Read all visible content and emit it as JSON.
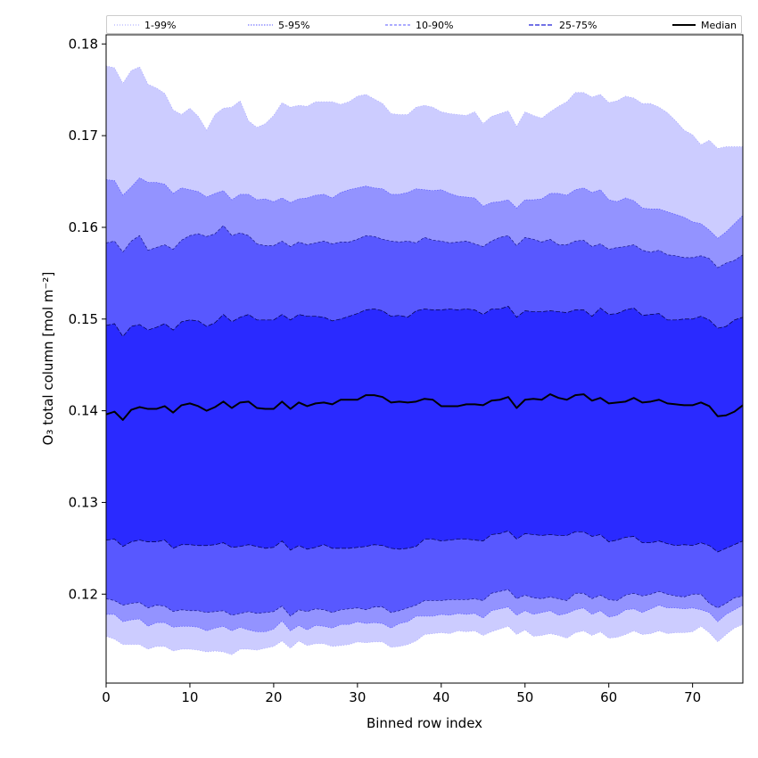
{
  "chart_data": {
    "type": "area",
    "title": "",
    "xlabel": "Binned row index",
    "ylabel": "O₃ total column [mol m⁻²]",
    "xlim": [
      0,
      76
    ],
    "ylim": [
      0.1103,
      0.181
    ],
    "xticks": [
      0,
      10,
      20,
      30,
      40,
      50,
      60,
      70
    ],
    "yticks": [
      0.12,
      0.13,
      0.14,
      0.15,
      0.16,
      0.17,
      0.18
    ],
    "xtick_labels": [
      "0",
      "10",
      "20",
      "30",
      "40",
      "50",
      "60",
      "70"
    ],
    "ytick_labels": [
      "0.12",
      "0.13",
      "0.14",
      "0.15",
      "0.16",
      "0.17",
      "0.18"
    ],
    "legend": [
      "1-99%",
      "5-95%",
      "10-90%",
      "25-75%",
      "Median"
    ],
    "legend_position": "top",
    "x": [
      0,
      1,
      2,
      3,
      4,
      5,
      6,
      7,
      8,
      9,
      10,
      11,
      12,
      13,
      14,
      15,
      16,
      17,
      18,
      19,
      20,
      21,
      22,
      23,
      24,
      25,
      26,
      27,
      28,
      29,
      30,
      31,
      32,
      33,
      34,
      35,
      36,
      37,
      38,
      39,
      40,
      41,
      42,
      43,
      44,
      45,
      46,
      47,
      48,
      49,
      50,
      51,
      52,
      53,
      54,
      55,
      56,
      57,
      58,
      59,
      60,
      61,
      62,
      63,
      64,
      65,
      66,
      67,
      68,
      69,
      70,
      71,
      72,
      73,
      74,
      75,
      76
    ],
    "bands": [
      {
        "name": "1-99%",
        "color": "#ccccff",
        "line_color": "#a0a0ff",
        "dash": "1,2",
        "upper": [
          0.1776,
          0.1774,
          0.1757,
          0.1771,
          0.1775,
          0.1756,
          0.1752,
          0.1746,
          0.1728,
          0.1723,
          0.173,
          0.1721,
          0.1706,
          0.1723,
          0.173,
          0.1731,
          0.1738,
          0.1716,
          0.1709,
          0.1713,
          0.1722,
          0.1736,
          0.1731,
          0.1733,
          0.1732,
          0.1737,
          0.1737,
          0.1737,
          0.1734,
          0.1737,
          0.1743,
          0.1745,
          0.174,
          0.1735,
          0.1724,
          0.1723,
          0.1723,
          0.1731,
          0.1733,
          0.1731,
          0.1726,
          0.1724,
          0.1723,
          0.1722,
          0.1726,
          0.1713,
          0.1721,
          0.1724,
          0.1727,
          0.171,
          0.1726,
          0.1722,
          0.1719,
          0.1726,
          0.1732,
          0.1737,
          0.1747,
          0.1747,
          0.1742,
          0.1745,
          0.1736,
          0.1738,
          0.1743,
          0.1741,
          0.1735,
          0.1735,
          0.1731,
          0.1725,
          0.1716,
          0.1706,
          0.1701,
          0.169,
          0.1695,
          0.1686,
          0.1688,
          0.1688,
          0.1688
        ],
        "lower": [
          0.1154,
          0.1151,
          0.1145,
          0.1145,
          0.1145,
          0.114,
          0.1143,
          0.1143,
          0.1138,
          0.114,
          0.114,
          0.1139,
          0.1137,
          0.1138,
          0.1137,
          0.1134,
          0.114,
          0.114,
          0.1139,
          0.1141,
          0.1143,
          0.1149,
          0.1141,
          0.1149,
          0.1144,
          0.1146,
          0.1146,
          0.1143,
          0.1144,
          0.1145,
          0.1148,
          0.1147,
          0.1148,
          0.1148,
          0.1142,
          0.1143,
          0.1145,
          0.1149,
          0.1156,
          0.1157,
          0.1158,
          0.1157,
          0.116,
          0.1159,
          0.116,
          0.1155,
          0.1159,
          0.1162,
          0.1165,
          0.1156,
          0.1161,
          0.1154,
          0.1155,
          0.1157,
          0.1155,
          0.1152,
          0.1158,
          0.116,
          0.1155,
          0.1159,
          0.1152,
          0.1153,
          0.1156,
          0.116,
          0.1156,
          0.1157,
          0.116,
          0.1157,
          0.1158,
          0.1158,
          0.1159,
          0.1165,
          0.1158,
          0.1148,
          0.1156,
          0.1163,
          0.1167
        ]
      },
      {
        "name": "5-95%",
        "color": "#9393ff",
        "line_color": "#5a5aff",
        "dash": "1.5,1.5",
        "upper": [
          0.1652,
          0.1651,
          0.1635,
          0.1644,
          0.1654,
          0.1649,
          0.1649,
          0.1647,
          0.1637,
          0.1643,
          0.1641,
          0.1639,
          0.1633,
          0.1637,
          0.164,
          0.163,
          0.1636,
          0.1636,
          0.163,
          0.1631,
          0.1628,
          0.1632,
          0.1627,
          0.1631,
          0.1632,
          0.1635,
          0.1636,
          0.1632,
          0.1638,
          0.1641,
          0.1643,
          0.1645,
          0.1643,
          0.1642,
          0.1636,
          0.1636,
          0.1638,
          0.1642,
          0.1641,
          0.164,
          0.1641,
          0.1637,
          0.1634,
          0.1633,
          0.1632,
          0.1623,
          0.1627,
          0.1628,
          0.163,
          0.1621,
          0.163,
          0.163,
          0.1631,
          0.1637,
          0.1637,
          0.1635,
          0.1641,
          0.1643,
          0.1638,
          0.1641,
          0.163,
          0.1628,
          0.1632,
          0.1629,
          0.1621,
          0.162,
          0.162,
          0.1617,
          0.1614,
          0.1611,
          0.1606,
          0.1604,
          0.1597,
          0.1588,
          0.1595,
          0.1604,
          0.1613
        ],
        "lower": [
          0.1178,
          0.1178,
          0.117,
          0.1172,
          0.1173,
          0.1165,
          0.1169,
          0.1169,
          0.1164,
          0.1165,
          0.1165,
          0.1164,
          0.116,
          0.1163,
          0.1165,
          0.116,
          0.1164,
          0.1161,
          0.1159,
          0.1159,
          0.1162,
          0.1171,
          0.116,
          0.1166,
          0.1161,
          0.1166,
          0.1165,
          0.1163,
          0.1167,
          0.1167,
          0.117,
          0.1168,
          0.1169,
          0.1168,
          0.1163,
          0.1168,
          0.117,
          0.1176,
          0.1176,
          0.1176,
          0.1178,
          0.1177,
          0.1179,
          0.1178,
          0.1179,
          0.1174,
          0.1182,
          0.1184,
          0.1186,
          0.1177,
          0.1182,
          0.1178,
          0.118,
          0.1182,
          0.1177,
          0.1179,
          0.1183,
          0.1185,
          0.1178,
          0.1182,
          0.1175,
          0.1177,
          0.1183,
          0.1184,
          0.118,
          0.1184,
          0.1188,
          0.1185,
          0.1185,
          0.1184,
          0.1185,
          0.1183,
          0.118,
          0.117,
          0.1178,
          0.1183,
          0.1188
        ]
      },
      {
        "name": "10-90%",
        "color": "#5858ff",
        "line_color": "#1a1a8a",
        "dash": "3,2",
        "upper": [
          0.1583,
          0.1585,
          0.1573,
          0.1585,
          0.1591,
          0.1575,
          0.1578,
          0.1581,
          0.1576,
          0.1586,
          0.1591,
          0.1593,
          0.159,
          0.1593,
          0.1602,
          0.1591,
          0.1594,
          0.1591,
          0.1582,
          0.158,
          0.158,
          0.1585,
          0.1579,
          0.1584,
          0.1581,
          0.1583,
          0.1585,
          0.1582,
          0.1584,
          0.1584,
          0.1587,
          0.1591,
          0.159,
          0.1587,
          0.1585,
          0.1584,
          0.1585,
          0.1583,
          0.1589,
          0.1586,
          0.1585,
          0.1583,
          0.1584,
          0.1585,
          0.1582,
          0.1579,
          0.1585,
          0.1589,
          0.1591,
          0.158,
          0.1589,
          0.1587,
          0.1584,
          0.1587,
          0.1581,
          0.1581,
          0.1585,
          0.1586,
          0.1579,
          0.1582,
          0.1576,
          0.1578,
          0.1579,
          0.1581,
          0.1575,
          0.1573,
          0.1575,
          0.157,
          0.1569,
          0.1567,
          0.1567,
          0.1569,
          0.1566,
          0.1556,
          0.1561,
          0.1564,
          0.157
        ],
        "lower": [
          0.1195,
          0.1193,
          0.1188,
          0.119,
          0.1191,
          0.1185,
          0.1188,
          0.1187,
          0.1181,
          0.1183,
          0.1182,
          0.1182,
          0.118,
          0.1181,
          0.1182,
          0.1177,
          0.1179,
          0.1181,
          0.1179,
          0.118,
          0.1181,
          0.1187,
          0.1176,
          0.1183,
          0.1181,
          0.1184,
          0.1183,
          0.118,
          0.1183,
          0.1184,
          0.1185,
          0.1183,
          0.1186,
          0.1186,
          0.118,
          0.1182,
          0.1185,
          0.1188,
          0.1193,
          0.1193,
          0.1193,
          0.1194,
          0.1194,
          0.1194,
          0.1195,
          0.1193,
          0.1201,
          0.1203,
          0.1205,
          0.1195,
          0.1199,
          0.1196,
          0.1195,
          0.1197,
          0.1195,
          0.1193,
          0.1201,
          0.1201,
          0.1195,
          0.1199,
          0.1194,
          0.1193,
          0.1199,
          0.1201,
          0.1198,
          0.12,
          0.1203,
          0.12,
          0.1198,
          0.1197,
          0.12,
          0.12,
          0.119,
          0.1185,
          0.119,
          0.1196,
          0.1198
        ]
      },
      {
        "name": "25-75%",
        "color": "#2a2aff",
        "line_color": "#000044",
        "dash": "5,2",
        "upper": [
          0.1493,
          0.1495,
          0.1481,
          0.1492,
          0.1494,
          0.1488,
          0.1491,
          0.1495,
          0.1488,
          0.1497,
          0.1499,
          0.1498,
          0.1492,
          0.1496,
          0.1505,
          0.1497,
          0.1502,
          0.1505,
          0.1499,
          0.1499,
          0.1499,
          0.1505,
          0.1499,
          0.1505,
          0.1503,
          0.1503,
          0.1502,
          0.1498,
          0.15,
          0.1503,
          0.1506,
          0.151,
          0.1511,
          0.1509,
          0.1503,
          0.1504,
          0.1502,
          0.1509,
          0.1511,
          0.151,
          0.151,
          0.1511,
          0.151,
          0.1511,
          0.151,
          0.1505,
          0.1511,
          0.1511,
          0.1514,
          0.1502,
          0.1509,
          0.1508,
          0.1508,
          0.1509,
          0.1508,
          0.1507,
          0.151,
          0.151,
          0.1503,
          0.1512,
          0.1505,
          0.1506,
          0.151,
          0.1512,
          0.1504,
          0.1505,
          0.1506,
          0.1499,
          0.1499,
          0.15,
          0.15,
          0.1503,
          0.1499,
          0.149,
          0.1492,
          0.1499,
          0.1502
        ],
        "lower": [
          0.1259,
          0.126,
          0.1252,
          0.1257,
          0.1259,
          0.1257,
          0.1257,
          0.1259,
          0.125,
          0.1254,
          0.1254,
          0.1253,
          0.1253,
          0.1254,
          0.1256,
          0.1251,
          0.1252,
          0.1254,
          0.1252,
          0.125,
          0.1251,
          0.1258,
          0.1248,
          0.1253,
          0.1249,
          0.1251,
          0.1254,
          0.125,
          0.125,
          0.125,
          0.1251,
          0.1252,
          0.1254,
          0.1253,
          0.125,
          0.1249,
          0.125,
          0.1252,
          0.126,
          0.126,
          0.1258,
          0.1259,
          0.126,
          0.126,
          0.1259,
          0.1258,
          0.1265,
          0.1266,
          0.1269,
          0.126,
          0.1266,
          0.1265,
          0.1264,
          0.1265,
          0.1264,
          0.1264,
          0.1268,
          0.1268,
          0.1263,
          0.1265,
          0.1257,
          0.1259,
          0.1262,
          0.1263,
          0.1256,
          0.1256,
          0.1258,
          0.1255,
          0.1253,
          0.1254,
          0.1253,
          0.1256,
          0.1253,
          0.1246,
          0.125,
          0.1254,
          0.1258
        ]
      }
    ],
    "median": {
      "name": "Median",
      "color": "#000000",
      "values": [
        0.1396,
        0.1399,
        0.139,
        0.1401,
        0.1404,
        0.1402,
        0.1402,
        0.1405,
        0.1398,
        0.1406,
        0.1408,
        0.1405,
        0.14,
        0.1404,
        0.141,
        0.1403,
        0.1409,
        0.141,
        0.1403,
        0.1402,
        0.1402,
        0.141,
        0.1402,
        0.1409,
        0.1405,
        0.1408,
        0.1409,
        0.1407,
        0.1412,
        0.1412,
        0.1412,
        0.1417,
        0.1417,
        0.1415,
        0.1409,
        0.141,
        0.1409,
        0.141,
        0.1413,
        0.1412,
        0.1405,
        0.1405,
        0.1405,
        0.1407,
        0.1407,
        0.1406,
        0.1411,
        0.1412,
        0.1415,
        0.1403,
        0.1412,
        0.1413,
        0.1412,
        0.1418,
        0.1414,
        0.1412,
        0.1417,
        0.1418,
        0.1411,
        0.1414,
        0.1408,
        0.1409,
        0.141,
        0.1414,
        0.1409,
        0.141,
        0.1412,
        0.1408,
        0.1407,
        0.1406,
        0.1406,
        0.1409,
        0.1405,
        0.1394,
        0.1395,
        0.1399,
        0.1406
      ]
    }
  }
}
